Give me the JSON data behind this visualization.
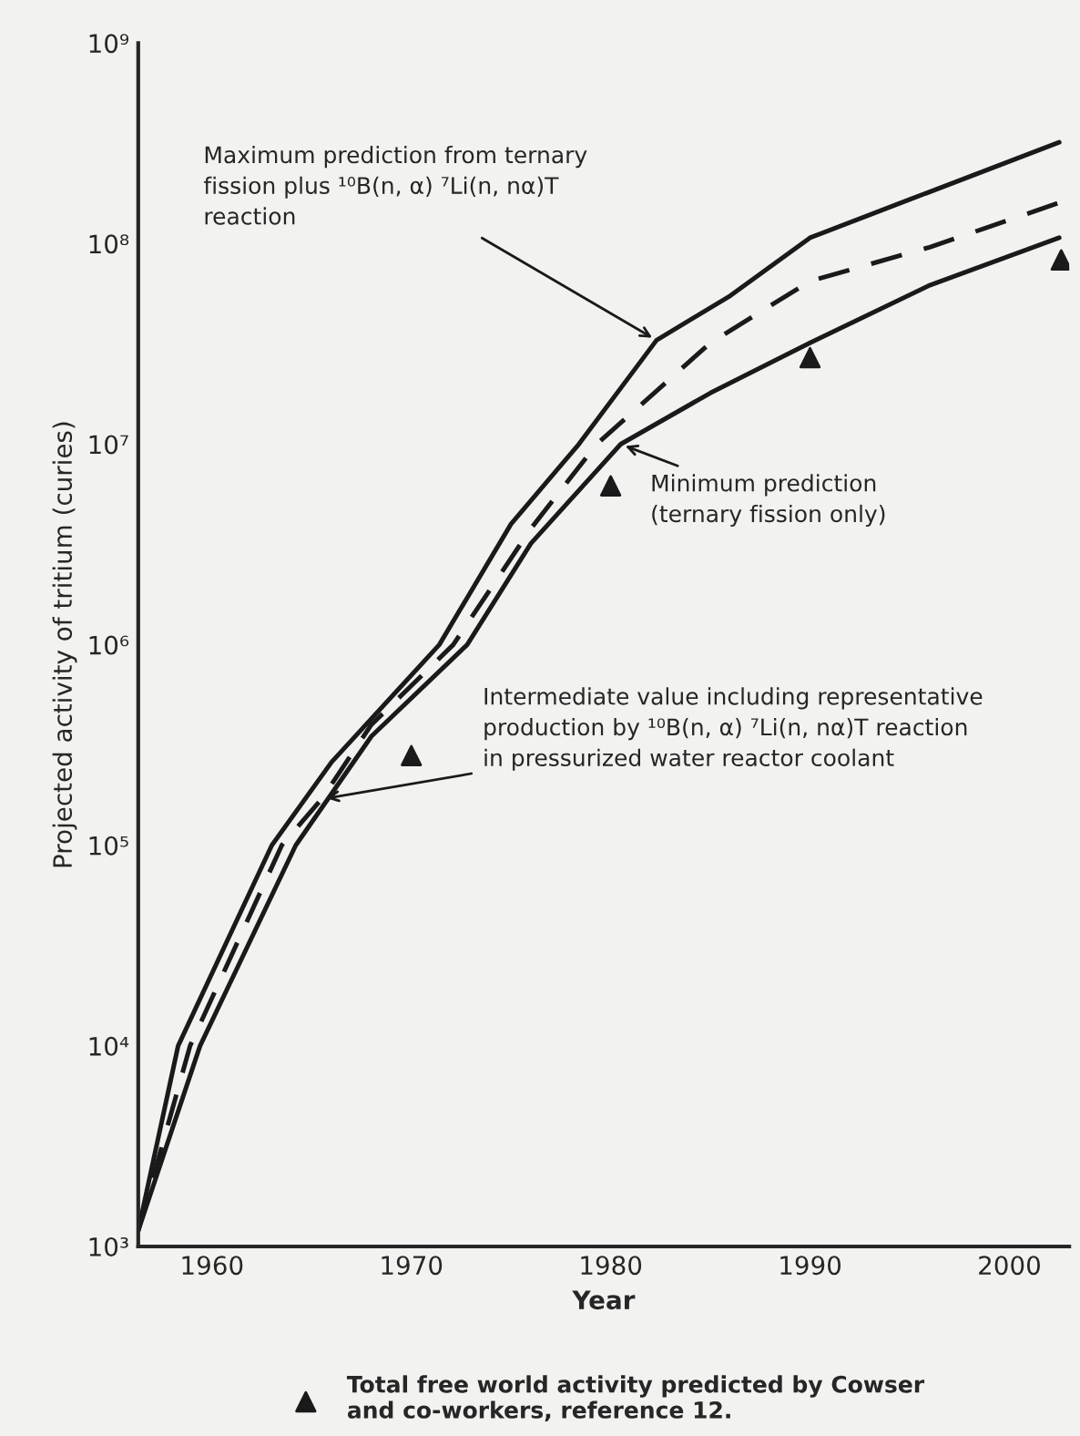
{
  "chart_data": {
    "type": "line",
    "xlabel": "Year",
    "ylabel": "Projected activity of tritium (curies)",
    "log": "y",
    "grid": false,
    "legend": "bottom",
    "xlim": [
      1956.3,
      2003
    ],
    "xticks": [
      1960,
      1970,
      1980,
      1990,
      2000
    ],
    "ylim": [
      1000,
      1000000000
    ],
    "yticks": [
      {
        "value": 1000,
        "label": "10³"
      },
      {
        "value": 10000,
        "label": "10⁴"
      },
      {
        "value": 100000,
        "label": "10⁵"
      },
      {
        "value": 1000000,
        "label": "10⁶"
      },
      {
        "value": 10000000,
        "label": "10⁷"
      },
      {
        "value": 100000000,
        "label": "10⁸"
      },
      {
        "value": 1000000000,
        "label": "10⁹"
      }
    ],
    "series": [
      {
        "color": "#1a1a1a",
        "line_style": "solid",
        "x": [
          1956.3,
          1958.3,
          1963,
          1966,
          1971.4,
          1975,
          1978.4,
          1982.3,
          1986,
          1990,
          1995,
          2002.5
        ],
        "values": [
          1200,
          10000,
          100000,
          260000,
          1000000,
          4000000,
          10000000,
          33000000,
          55000000,
          107000000,
          166000000,
          320000000
        ]
      },
      {
        "color": "#1a1a1a",
        "line_style": "dashed",
        "x": [
          1956.3,
          1958.9,
          1963.5,
          1965.5,
          1968,
          1972.1,
          1976,
          1979.3,
          1985,
          1990,
          1996,
          2002.5
        ],
        "values": [
          1200,
          10000,
          100000,
          170000,
          400000,
          1000000,
          3800000,
          10000000,
          32000000,
          65000000,
          96000000,
          160000000
        ]
      },
      {
        "color": "#1a1a1a",
        "line_style": "solid",
        "x": [
          1956.3,
          1959.4,
          1964.2,
          1968,
          1972.8,
          1976,
          1980.5,
          1985,
          1990,
          1996,
          2002.5
        ],
        "values": [
          1200,
          10000,
          100000,
          350000,
          1000000,
          3200000,
          10000000,
          18000000,
          32000000,
          62000000,
          107000000
        ]
      },
      {
        "type": "scatter",
        "name": "Total free world activity predicted by Cowser\nand co-workers, reference 12.",
        "color": "#1a1a1a",
        "marker": "triangle",
        "x": [
          1970,
          1980,
          1990,
          2002.6
        ],
        "values": [
          280000,
          6200000,
          27000000,
          83000000
        ]
      }
    ],
    "annotations": [
      {
        "text": "Maximum prediction from ternary\nfission plus ¹⁰B(n, α) ⁷Li(n, nα)T\nreaction",
        "x": 1982.3,
        "y": 33000000
      },
      {
        "text": "Minimum prediction\n(ternary fission only)",
        "x": 1980.5,
        "y": 10000000
      },
      {
        "text": "Intermediate value including representative\nproduction by ¹⁰B(n, α) ⁷Li(n, nα)T reaction\nin pressurized water reactor coolant",
        "x": 1965.5,
        "y": 170000
      }
    ]
  }
}
